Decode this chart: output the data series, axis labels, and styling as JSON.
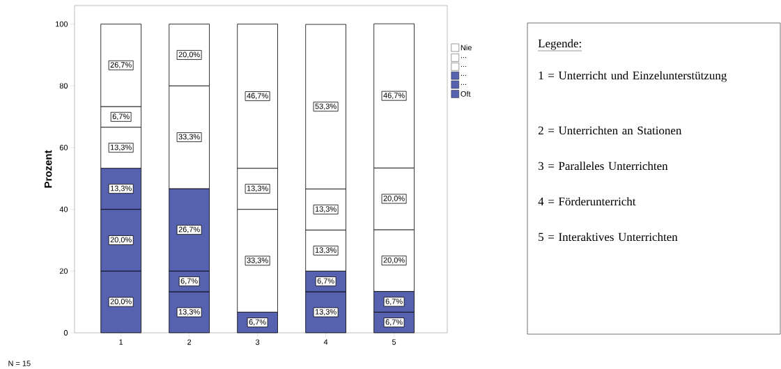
{
  "chart_data": {
    "type": "bar",
    "stacked": true,
    "ylabel": "Prozent",
    "categories": [
      "1",
      "2",
      "3",
      "4",
      "5"
    ],
    "ylim": [
      0,
      106
    ],
    "yticks": [
      0,
      20,
      40,
      60,
      80,
      100
    ],
    "legend": "right",
    "series": [
      {
        "name": "Oft",
        "color": "#5662b0",
        "values": [
          20.0,
          13.3,
          6.7,
          13.3,
          6.7
        ],
        "value_labels": [
          "20,0%",
          "13,3%",
          "6,7%",
          "13,3%",
          "6,7%"
        ]
      },
      {
        "name": "...",
        "color": "#5662b0",
        "values": [
          20.0,
          6.7,
          null,
          6.7,
          6.7
        ],
        "value_labels": [
          "20,0%",
          "6,7%",
          null,
          "6,7%",
          "6,7%"
        ]
      },
      {
        "name": "...",
        "color": "#5662b0",
        "values": [
          13.3,
          26.7,
          null,
          null,
          null
        ],
        "value_labels": [
          "13,3%",
          "26,7%",
          null,
          null,
          null
        ]
      },
      {
        "name": "...",
        "color": "#ffffff",
        "values": [
          13.3,
          null,
          33.3,
          13.3,
          20.0
        ],
        "value_labels": [
          "13,3%",
          null,
          "33,3%",
          "13,3%",
          "20,0%"
        ]
      },
      {
        "name": "...",
        "color": "#ffffff",
        "values": [
          6.7,
          33.3,
          13.3,
          13.3,
          20.0
        ],
        "value_labels": [
          "6,7%",
          "33,3%",
          "13,3%",
          "13,3%",
          "20,0%"
        ]
      },
      {
        "name": "Nie",
        "color": "#ffffff",
        "values": [
          26.7,
          20.0,
          46.7,
          53.3,
          46.7
        ],
        "value_labels": [
          "26,7%",
          "20,0%",
          "46,7%",
          "53,3%",
          "46,7%"
        ]
      }
    ],
    "annotations": [
      "N = 15",
      "Legende:",
      "1 = Unterricht und Einzelunterstützung",
      "2 = Unterrichten an Stationen",
      "3 = Paralleles Unterrichten",
      "4 = Förderunterricht",
      "5 = Interaktives Unterrichten"
    ]
  }
}
